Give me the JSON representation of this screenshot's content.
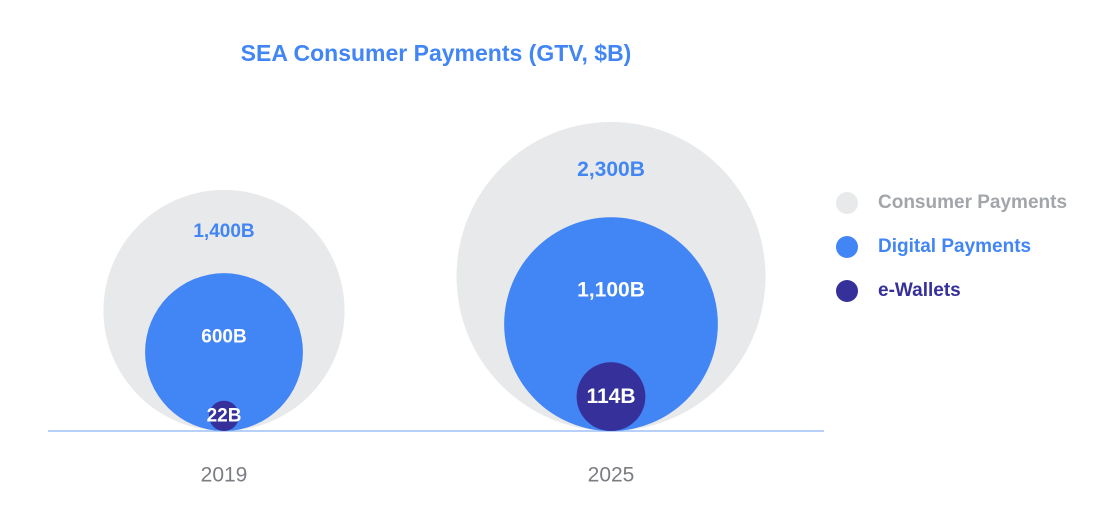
{
  "chart_data": {
    "type": "nested-bubble",
    "title": "SEA Consumer Payments (GTV, $B)",
    "groups": [
      {
        "year": "2019",
        "values": [
          {
            "series": "Consumer Payments",
            "value": 1400,
            "label": "1,400B"
          },
          {
            "series": "Digital Payments",
            "value": 600,
            "label": "600B"
          },
          {
            "series": "e-Wallets",
            "value": 22,
            "label": "22B"
          }
        ]
      },
      {
        "year": "2025",
        "values": [
          {
            "series": "Consumer Payments",
            "value": 2300,
            "label": "2,300B"
          },
          {
            "series": "Digital Payments",
            "value": 1100,
            "label": "1,100B"
          },
          {
            "series": "e-Wallets",
            "value": 114,
            "label": "114B"
          }
        ]
      }
    ],
    "legend": [
      {
        "name": "Consumer Payments",
        "color": "#E8E9EB",
        "text_color": "#A2A5A9"
      },
      {
        "name": "Digital Payments",
        "color": "#4285F4",
        "text_color": "#4285F4"
      },
      {
        "name": "e-Wallets",
        "color": "#35309A",
        "text_color": "#35309A"
      }
    ],
    "colors": {
      "title": "#4285F4",
      "axis": "#8AB4F8",
      "year_label": "#7A7D81",
      "consumer_label": "#4285F4",
      "inner_label": "#FFFFFF"
    }
  }
}
